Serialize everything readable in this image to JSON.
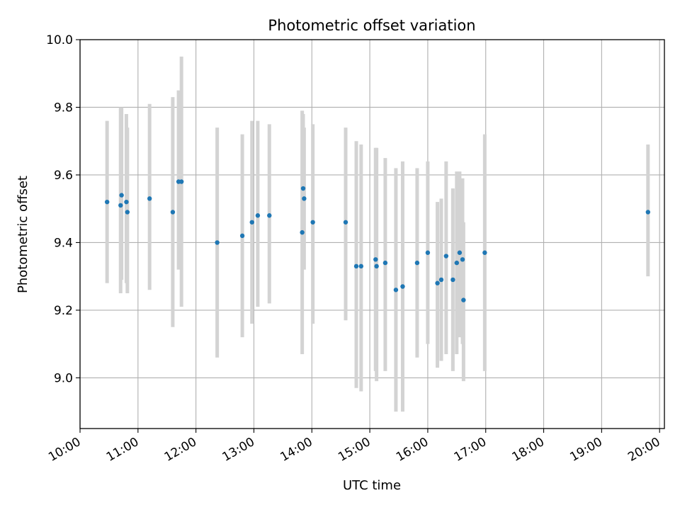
{
  "chart_data": {
    "type": "scatter",
    "title": "Photometric offset variation",
    "xlabel": "UTC time",
    "ylabel": "Photometric offset",
    "x_tick_labels": [
      "10:00",
      "11:00",
      "12:00",
      "13:00",
      "14:00",
      "15:00",
      "16:00",
      "17:00",
      "18:00",
      "19:00",
      "20:00"
    ],
    "y_ticks": [
      "9.0",
      "9.2",
      "9.4",
      "9.6",
      "9.8",
      "10.0"
    ],
    "xlim": [
      "10:00",
      "20:05"
    ],
    "ylim": [
      8.85,
      10.0
    ],
    "grid": true,
    "colors": {
      "point": "#1f77b4",
      "errorbar": "#d3d3d3",
      "grid": "#b0b0b0"
    },
    "series": [
      {
        "points": [
          {
            "t": "10:28",
            "y": 9.52,
            "lo": 9.28,
            "hi": 9.76
          },
          {
            "t": "10:42",
            "y": 9.51,
            "lo": 9.25,
            "hi": 9.8
          },
          {
            "t": "10:43",
            "y": 9.54,
            "lo": 9.29,
            "hi": 9.8
          },
          {
            "t": "10:48",
            "y": 9.52,
            "lo": 9.28,
            "hi": 9.78
          },
          {
            "t": "10:49",
            "y": 9.49,
            "lo": 9.25,
            "hi": 9.74
          },
          {
            "t": "11:12",
            "y": 9.53,
            "lo": 9.26,
            "hi": 9.81
          },
          {
            "t": "11:36",
            "y": 9.49,
            "lo": 9.15,
            "hi": 9.83
          },
          {
            "t": "11:42",
            "y": 9.58,
            "lo": 9.32,
            "hi": 9.85
          },
          {
            "t": "11:45",
            "y": 9.58,
            "lo": 9.21,
            "hi": 9.95
          },
          {
            "t": "12:22",
            "y": 9.4,
            "lo": 9.06,
            "hi": 9.74
          },
          {
            "t": "12:48",
            "y": 9.42,
            "lo": 9.12,
            "hi": 9.72
          },
          {
            "t": "12:58",
            "y": 9.46,
            "lo": 9.16,
            "hi": 9.76
          },
          {
            "t": "13:04",
            "y": 9.48,
            "lo": 9.21,
            "hi": 9.76
          },
          {
            "t": "13:16",
            "y": 9.48,
            "lo": 9.22,
            "hi": 9.75
          },
          {
            "t": "13:50",
            "y": 9.43,
            "lo": 9.07,
            "hi": 9.79
          },
          {
            "t": "13:51",
            "y": 9.56,
            "lo": 9.35,
            "hi": 9.78
          },
          {
            "t": "13:52",
            "y": 9.53,
            "lo": 9.32,
            "hi": 9.74
          },
          {
            "t": "14:01",
            "y": 9.46,
            "lo": 9.16,
            "hi": 9.75
          },
          {
            "t": "14:35",
            "y": 9.46,
            "lo": 9.17,
            "hi": 9.74
          },
          {
            "t": "14:46",
            "y": 9.33,
            "lo": 8.97,
            "hi": 9.7
          },
          {
            "t": "14:51",
            "y": 9.33,
            "lo": 8.96,
            "hi": 9.69
          },
          {
            "t": "15:06",
            "y": 9.35,
            "lo": 9.02,
            "hi": 9.68
          },
          {
            "t": "15:07",
            "y": 9.33,
            "lo": 8.99,
            "hi": 9.68
          },
          {
            "t": "15:16",
            "y": 9.34,
            "lo": 9.02,
            "hi": 9.65
          },
          {
            "t": "15:27",
            "y": 9.26,
            "lo": 8.9,
            "hi": 9.62
          },
          {
            "t": "15:34",
            "y": 9.27,
            "lo": 8.9,
            "hi": 9.64
          },
          {
            "t": "15:49",
            "y": 9.34,
            "lo": 9.06,
            "hi": 9.62
          },
          {
            "t": "16:00",
            "y": 9.37,
            "lo": 9.1,
            "hi": 9.64
          },
          {
            "t": "16:10",
            "y": 9.28,
            "lo": 9.03,
            "hi": 9.52
          },
          {
            "t": "16:14",
            "y": 9.29,
            "lo": 9.05,
            "hi": 9.53
          },
          {
            "t": "16:19",
            "y": 9.36,
            "lo": 9.07,
            "hi": 9.64
          },
          {
            "t": "16:26",
            "y": 9.29,
            "lo": 9.02,
            "hi": 9.56
          },
          {
            "t": "16:30",
            "y": 9.34,
            "lo": 9.07,
            "hi": 9.61
          },
          {
            "t": "16:33",
            "y": 9.37,
            "lo": 9.12,
            "hi": 9.61
          },
          {
            "t": "16:36",
            "y": 9.35,
            "lo": 9.1,
            "hi": 9.59
          },
          {
            "t": "16:37",
            "y": 9.23,
            "lo": 8.99,
            "hi": 9.46
          },
          {
            "t": "16:59",
            "y": 9.37,
            "lo": 9.02,
            "hi": 9.72
          },
          {
            "t": "19:48",
            "y": 9.49,
            "lo": 9.3,
            "hi": 9.69
          }
        ]
      }
    ]
  }
}
